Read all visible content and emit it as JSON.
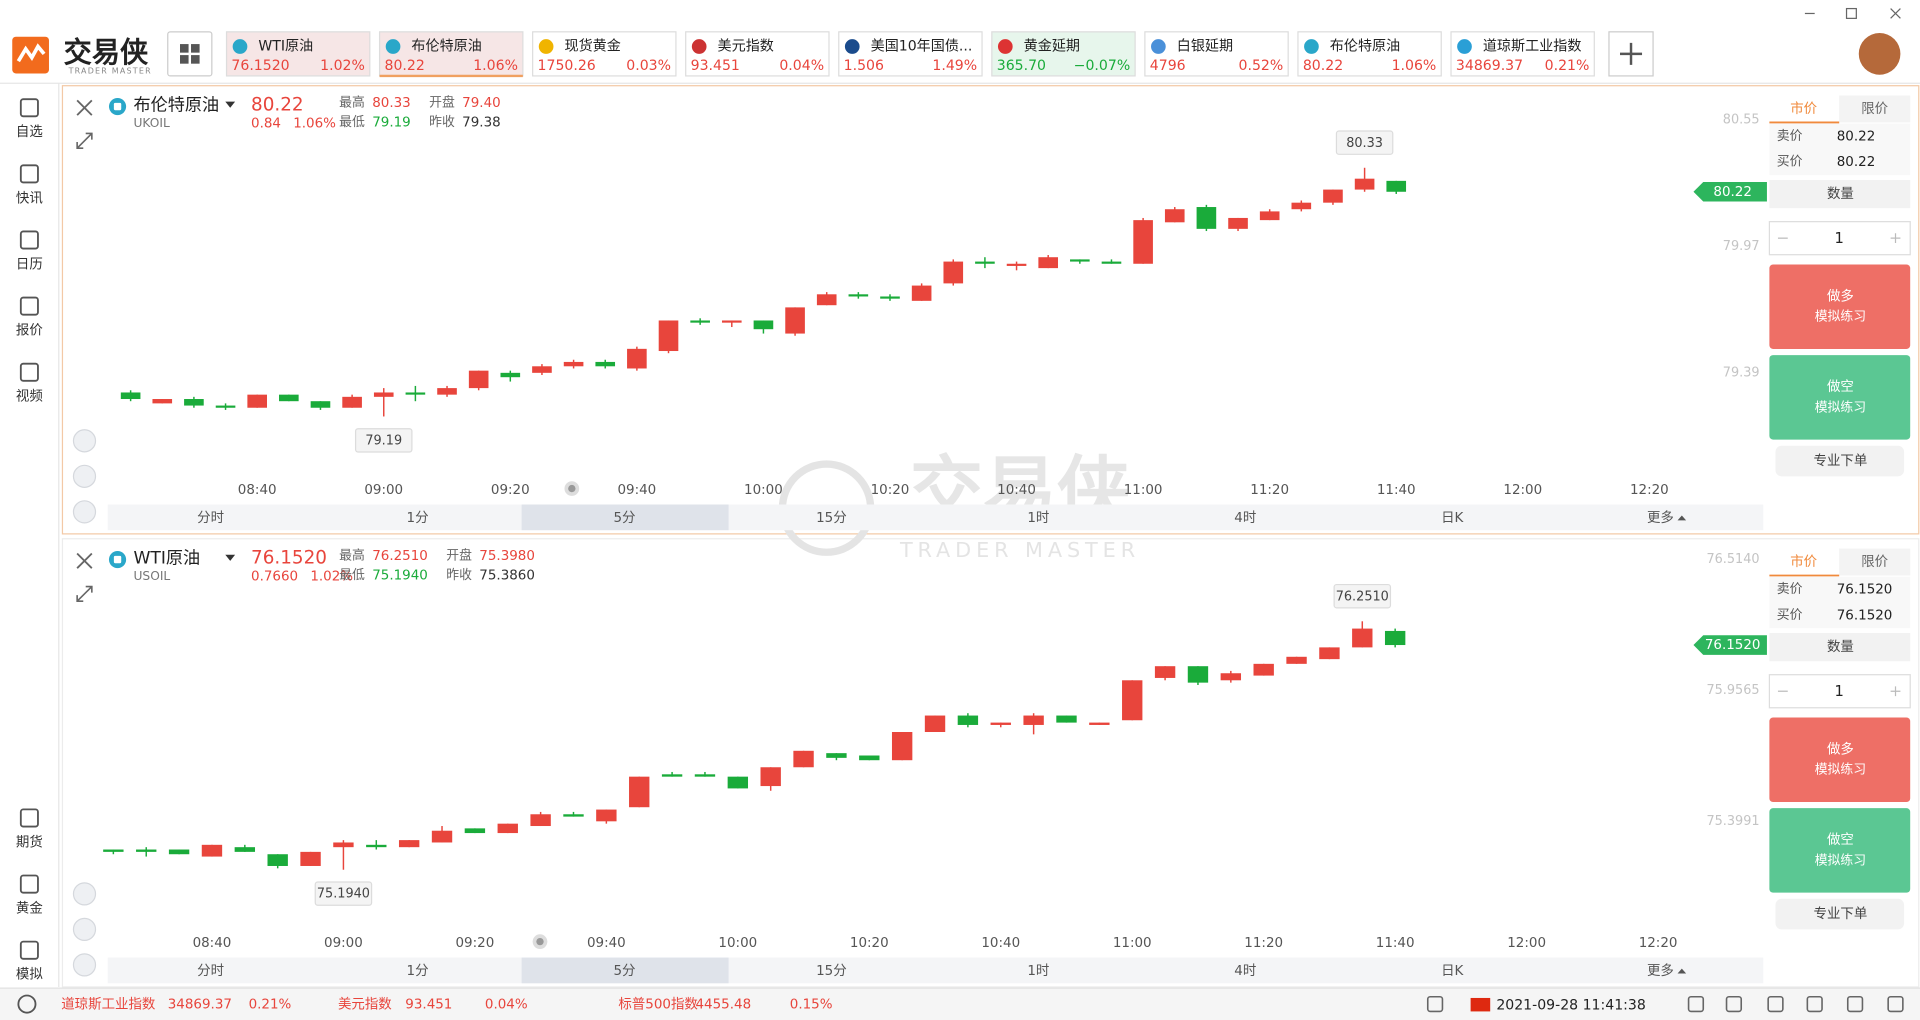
{
  "app": {
    "logo": "交易侠",
    "logo_sub": "TRADER MASTER"
  },
  "tabs": [
    {
      "name": "WTI原油",
      "price": "76.1520",
      "change": "1.02%",
      "color": "#e8453c"
    },
    {
      "name": "布伦特原油",
      "price": "80.22",
      "change": "1.06%",
      "color": "#e8453c"
    },
    {
      "name": "现货黄金",
      "price": "1750.26",
      "change": "0.03%",
      "color": "#e8453c"
    },
    {
      "name": "美元指数",
      "price": "93.451",
      "change": "0.04%",
      "color": "#e8453c"
    },
    {
      "name": "美国10年国债...",
      "price": "1.506",
      "change": "1.49%",
      "color": "#e8453c"
    },
    {
      "name": "黄金延期",
      "price": "365.70",
      "change": "−0.07%",
      "color": "#1aab3a"
    },
    {
      "name": "白银延期",
      "price": "4796",
      "change": "0.52%",
      "color": "#e8453c"
    },
    {
      "name": "布伦特原油",
      "price": "80.22",
      "change": "1.06%",
      "color": "#e8453c"
    },
    {
      "name": "道琼斯工业指数",
      "price": "34869.37",
      "change": "0.21%",
      "color": "#e8453c"
    }
  ],
  "sidebar": [
    "自选",
    "快讯",
    "日历",
    "报价",
    "视频"
  ],
  "sidebar_bottom": [
    "期货",
    "黄金",
    "模拟"
  ],
  "timeframes": [
    "分时",
    "1分",
    "5分",
    "15分",
    "1时",
    "4时",
    "日K",
    "更多"
  ],
  "order_labels": {
    "market": "市价",
    "limit": "限价",
    "sell": "卖价",
    "buy": "买价",
    "qty": "数量",
    "long": "做多",
    "short": "做空",
    "practice": "模拟练习",
    "pro": "专业下单"
  },
  "panels": [
    {
      "name": "布伦特原油",
      "symbol": "UKOIL",
      "price": "80.22",
      "change": "0.84",
      "change_pct": "1.06%",
      "stats": [
        {
          "label": "最高",
          "value": "80.33"
        },
        {
          "label": "开盘",
          "value": "79.40"
        },
        {
          "label": "最低",
          "value": "79.19"
        },
        {
          "label": "昨收",
          "value": "79.38"
        }
      ],
      "sell": "80.22",
      "buy": "80.22",
      "qty": "1"
    },
    {
      "name": "WTI原油",
      "symbol": "USOIL",
      "price": "76.1520",
      "change": "0.7660",
      "change_pct": "1.02%",
      "stats": [
        {
          "label": "最高",
          "value": "76.2510"
        },
        {
          "label": "开盘",
          "value": "75.3980"
        },
        {
          "label": "最低",
          "value": "75.1940"
        },
        {
          "label": "昨收",
          "value": "75.3860"
        }
      ],
      "sell": "76.1520",
      "buy": "76.1520",
      "qty": "1"
    }
  ],
  "chart_data": [
    {
      "type": "candlestick",
      "up_color": "#e8453c",
      "down_color": "#1aab3a",
      "x": [
        "08:20",
        "08:25",
        "08:30",
        "08:35",
        "08:40",
        "08:45",
        "08:50",
        "08:55",
        "09:00",
        "09:05",
        "09:10",
        "09:15",
        "09:20",
        "09:25",
        "09:30",
        "09:35",
        "09:40",
        "09:45",
        "09:50",
        "09:55",
        "10:00",
        "10:05",
        "10:10",
        "10:15",
        "10:20",
        "10:25",
        "10:30",
        "10:35",
        "10:40",
        "10:45",
        "10:50",
        "10:55",
        "11:00",
        "11:05",
        "11:10",
        "11:15",
        "11:20",
        "11:25",
        "11:30",
        "11:35",
        "11:40"
      ],
      "open": [
        79.3,
        79.25,
        79.27,
        79.24,
        79.23,
        79.29,
        79.26,
        79.23,
        79.28,
        79.3,
        79.29,
        79.32,
        79.39,
        79.39,
        79.42,
        79.44,
        79.41,
        79.49,
        79.63,
        79.62,
        79.63,
        79.57,
        79.7,
        79.75,
        79.74,
        79.72,
        79.8,
        79.9,
        79.88,
        79.87,
        79.91,
        79.9,
        79.89,
        80.08,
        80.15,
        80.05,
        80.09,
        80.14,
        80.17,
        80.23,
        80.27
      ],
      "high": [
        79.31,
        79.27,
        79.28,
        79.25,
        79.29,
        79.29,
        79.26,
        79.29,
        79.32,
        79.33,
        79.33,
        79.4,
        79.4,
        79.43,
        79.45,
        79.45,
        79.51,
        79.63,
        79.64,
        79.63,
        79.63,
        79.69,
        79.76,
        79.76,
        79.75,
        79.8,
        79.91,
        79.92,
        79.9,
        79.93,
        79.91,
        79.91,
        80.1,
        80.15,
        80.16,
        80.1,
        80.14,
        80.18,
        80.23,
        80.33,
        80.27
      ],
      "low": [
        79.26,
        79.25,
        79.23,
        79.22,
        79.23,
        79.26,
        79.22,
        79.23,
        79.19,
        79.26,
        79.28,
        79.31,
        79.35,
        79.38,
        79.41,
        79.41,
        79.4,
        79.48,
        79.61,
        79.6,
        79.57,
        79.56,
        79.7,
        79.73,
        79.72,
        79.72,
        79.79,
        79.87,
        79.86,
        79.87,
        79.89,
        79.89,
        79.89,
        80.08,
        80.04,
        80.04,
        80.09,
        80.13,
        80.16,
        80.22,
        80.21
      ],
      "close": [
        79.27,
        79.27,
        79.24,
        79.23,
        79.29,
        79.26,
        79.23,
        79.28,
        79.3,
        79.29,
        79.32,
        79.4,
        79.37,
        79.42,
        79.44,
        79.42,
        79.5,
        79.63,
        79.62,
        79.63,
        79.59,
        79.69,
        79.75,
        79.74,
        79.73,
        79.79,
        79.9,
        79.89,
        79.89,
        79.92,
        79.9,
        79.89,
        80.09,
        80.14,
        80.05,
        80.1,
        80.13,
        80.17,
        80.23,
        80.28,
        80.22
      ],
      "xlim": [
        "08:10",
        "12:38"
      ],
      "xticks": [
        "08:40",
        "09:00",
        "09:20",
        "09:40",
        "10:00",
        "10:20",
        "10:40",
        "11:00",
        "11:20",
        "11:40",
        "12:00",
        "12:20"
      ],
      "ylim": [
        78.91,
        80.65
      ],
      "yticks": [
        80.55,
        79.97,
        79.39
      ],
      "annotations": [
        80.33,
        79.19
      ]
    },
    {
      "type": "candlestick",
      "up_color": "#e8453c",
      "down_color": "#1aab3a",
      "x": [
        "08:25",
        "08:30",
        "08:35",
        "08:40",
        "08:45",
        "08:50",
        "08:55",
        "09:00",
        "09:05",
        "09:10",
        "09:15",
        "09:20",
        "09:25",
        "09:30",
        "09:35",
        "09:40",
        "09:45",
        "09:50",
        "09:55",
        "10:00",
        "10:05",
        "10:10",
        "10:15",
        "10:20",
        "10:25",
        "10:30",
        "10:35",
        "10:40",
        "10:45",
        "10:50",
        "10:55",
        "11:00",
        "11:05",
        "11:10",
        "11:15",
        "11:20",
        "11:25",
        "11:30",
        "11:35",
        "11:40"
      ],
      "open": [
        75.28,
        75.28,
        75.28,
        75.25,
        75.29,
        75.26,
        75.21,
        75.29,
        75.3,
        75.29,
        75.31,
        75.37,
        75.35,
        75.38,
        75.43,
        75.4,
        75.46,
        75.6,
        75.6,
        75.59,
        75.55,
        75.63,
        75.69,
        75.68,
        75.66,
        75.78,
        75.85,
        75.81,
        75.81,
        75.85,
        75.81,
        75.83,
        76.01,
        76.06,
        76.0,
        76.02,
        76.07,
        76.09,
        76.14,
        76.21
      ],
      "high": [
        75.28,
        75.29,
        75.28,
        75.3,
        75.3,
        75.26,
        75.27,
        75.32,
        75.32,
        75.32,
        75.38,
        75.37,
        75.39,
        75.44,
        75.44,
        75.45,
        75.59,
        75.61,
        75.61,
        75.59,
        75.63,
        75.7,
        75.69,
        75.68,
        75.78,
        75.85,
        75.86,
        75.82,
        75.86,
        75.85,
        75.82,
        76.0,
        76.06,
        76.06,
        76.04,
        76.07,
        76.1,
        76.14,
        76.251,
        76.22
      ],
      "low": [
        75.26,
        75.25,
        75.26,
        75.25,
        75.27,
        75.2,
        75.21,
        75.194,
        75.28,
        75.29,
        75.31,
        75.35,
        75.35,
        75.38,
        75.42,
        75.39,
        75.46,
        75.59,
        75.59,
        75.54,
        75.53,
        75.63,
        75.66,
        75.66,
        75.66,
        75.78,
        75.8,
        75.8,
        75.77,
        75.82,
        75.81,
        75.83,
        76.0,
        75.98,
        75.99,
        76.02,
        76.07,
        76.09,
        76.14,
        76.14
      ],
      "close": [
        75.27,
        75.27,
        75.26,
        75.3,
        75.27,
        75.21,
        75.27,
        75.31,
        75.29,
        75.32,
        75.36,
        75.35,
        75.39,
        75.43,
        75.42,
        75.45,
        75.59,
        75.59,
        75.59,
        75.54,
        75.63,
        75.7,
        75.67,
        75.66,
        75.78,
        75.85,
        75.81,
        75.82,
        75.85,
        75.82,
        75.82,
        76.0,
        76.06,
        75.99,
        76.03,
        76.07,
        76.1,
        76.14,
        76.22,
        76.15
      ],
      "xlim": [
        "08:18",
        "12:36"
      ],
      "xticks": [
        "08:40",
        "09:00",
        "09:20",
        "09:40",
        "10:00",
        "10:20",
        "10:40",
        "11:00",
        "11:20",
        "11:40",
        "12:00",
        "12:20"
      ],
      "ylim": [
        74.935,
        76.55
      ],
      "yticks": [
        {
          "value": 76.514,
          "label": "76.5140"
        },
        75.9565,
        75.3991
      ],
      "annotations": [
        {
          "value": 76.251,
          "label": "76.2510"
        },
        {
          "value": 75.194,
          "label": "75.1940"
        }
      ]
    }
  ],
  "status": {
    "items": [
      {
        "name": "道琼斯工业指数",
        "price": "34869.37",
        "change": "0.21%"
      },
      {
        "name": "美元指数",
        "price": "93.451",
        "change": "0.04%"
      },
      {
        "name": "标普500指数",
        "price": "4455.48",
        "change": "0.15%"
      }
    ],
    "datetime": "2021-09-28 11:41:38"
  }
}
